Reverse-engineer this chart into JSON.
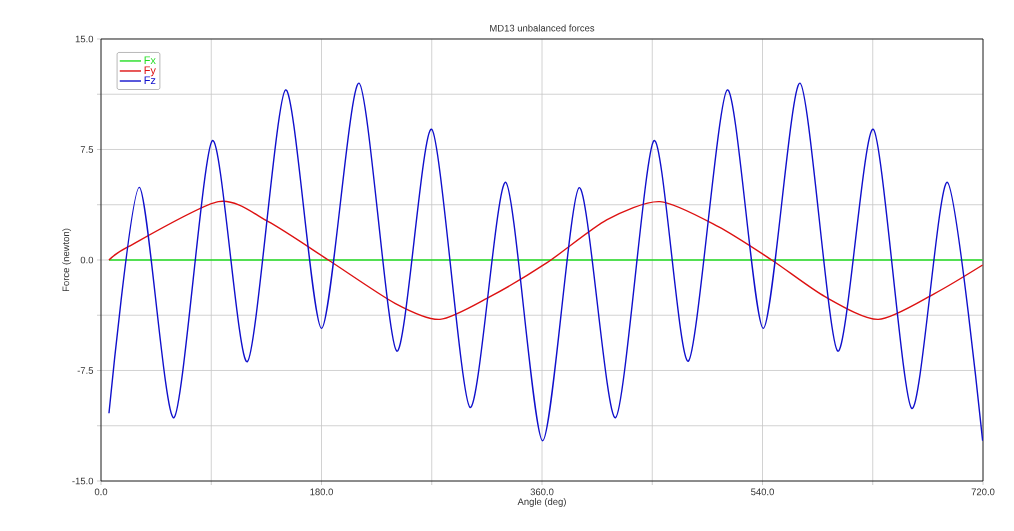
{
  "chart_data": {
    "type": "line",
    "title": "MD13 unbalanced forces",
    "xlabel": "Angle (deg)",
    "ylabel": "Force (newton)",
    "xlim": [
      0,
      720
    ],
    "ylim": [
      -15,
      15
    ],
    "xticks": [
      {
        "value": 0,
        "label": "0.0"
      },
      {
        "value": 90,
        "label": null
      },
      {
        "value": 180,
        "label": "180.0"
      },
      {
        "value": 270,
        "label": null
      },
      {
        "value": 360,
        "label": "360.0"
      },
      {
        "value": 450,
        "label": null
      },
      {
        "value": 540,
        "label": "540.0"
      },
      {
        "value": 630,
        "label": null
      },
      {
        "value": 720,
        "label": "720.0"
      }
    ],
    "yticks": [
      {
        "value": -15,
        "label": "-15.0"
      },
      {
        "value": -11.25,
        "label": null
      },
      {
        "value": -7.5,
        "label": "-7.5"
      },
      {
        "value": -3.75,
        "label": null
      },
      {
        "value": 0,
        "label": "0.0"
      },
      {
        "value": 3.75,
        "label": null
      },
      {
        "value": 7.5,
        "label": "7.5"
      },
      {
        "value": 11.25,
        "label": null
      },
      {
        "value": 15,
        "label": "15.0"
      }
    ],
    "grid": true,
    "legend": "top left",
    "marker": "none",
    "line_style": "solid",
    "series": [
      {
        "name": "Fx",
        "color": "#22dd22",
        "x": [
          6.5,
          719.7
        ],
        "values": [
          0,
          0
        ]
      },
      {
        "name": "Fy",
        "color": "#dd1111",
        "x": [
          6.5,
          22.3,
          95.8,
          136.6,
          185.6,
          240,
          276.7,
          317.6,
          363.8,
          412.8,
          456.3,
          503.9,
          547.5,
          591,
          634.5,
          680.8,
          719.7
        ],
        "values": [
          0,
          0.9,
          3.96,
          2.6,
          0,
          -2.94,
          -4.03,
          -2.49,
          -0.2,
          2.72,
          3.96,
          2.26,
          0,
          -2.49,
          -4.03,
          -2.26,
          -0.34
        ]
      },
      {
        "name": "Fz",
        "color": "#1010cc",
        "x": [
          6.5,
          31.3,
          59.6,
          90.9,
          119.5,
          150.7,
          180.1,
          210.6,
          241.4,
          270,
          301.2,
          330.4,
          360.5,
          390.4,
          420.1,
          451.4,
          479.5,
          511.3,
          540.7,
          570.6,
          601.4,
          630.5,
          661.8,
          690.9,
          719.7
        ],
        "values": [
          -10.4,
          4.93,
          -10.7,
          8.1,
          -6.9,
          11.54,
          -4.64,
          12.0,
          -6.18,
          8.87,
          -10.0,
          5.27,
          -12.27,
          4.91,
          -10.7,
          8.1,
          -6.86,
          11.54,
          -4.64,
          12.0,
          -6.18,
          8.87,
          -10.07,
          5.27,
          -12.27
        ]
      }
    ]
  }
}
